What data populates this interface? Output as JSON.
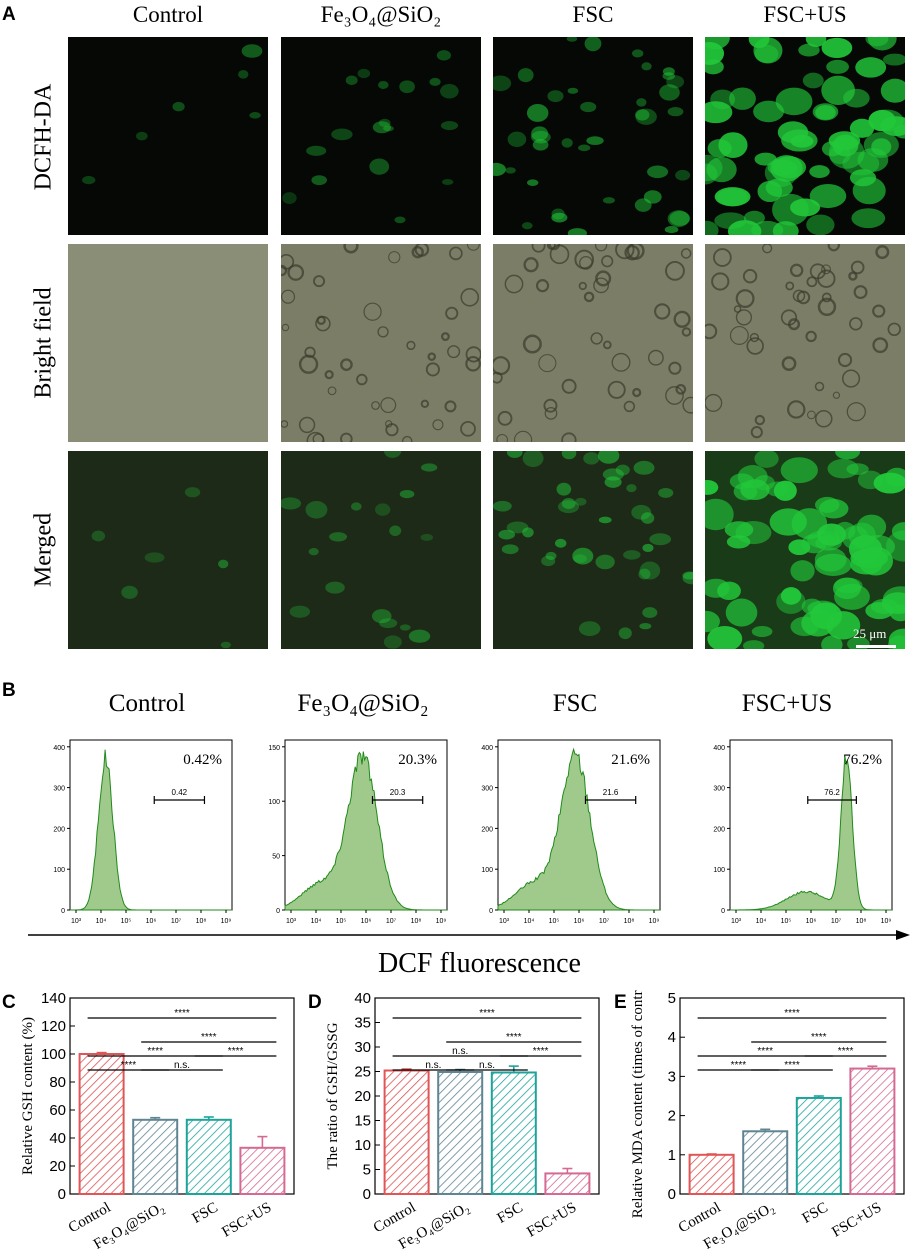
{
  "panels": {
    "a": "A",
    "b": "B",
    "c": "C",
    "d": "D",
    "e": "E"
  },
  "microscopy": {
    "columns": [
      "Control",
      "Fe₃O₄@SiO₂",
      "FSC",
      "FSC+US"
    ],
    "rows": [
      "DCFH-DA",
      "Bright field",
      "Merged"
    ],
    "scale_bar": "25 μm",
    "colors": {
      "fluor": "#22c83a",
      "bright": "#7e8370"
    }
  },
  "flow": {
    "titles": [
      "Control",
      "Fe₃O₄@SiO₂",
      "FSC",
      "FSC+US"
    ],
    "percents": [
      "0.42%",
      "20.3%",
      "21.6%",
      "76.2%"
    ],
    "gate_labels": [
      "0.42",
      "20.3",
      "21.6",
      "76.2"
    ],
    "x_ticks": [
      "10³",
      "10⁴",
      "10⁵",
      "10⁶",
      "10⁷",
      "10⁸",
      "10⁹"
    ],
    "y_ticks": [
      [
        "0",
        "100",
        "200",
        "300",
        "400"
      ],
      [
        "0",
        "50",
        "100",
        "150"
      ],
      [
        "0",
        "100",
        "200",
        "300",
        "400"
      ],
      [
        "0",
        "100",
        "200",
        "300",
        "400"
      ]
    ],
    "axis_label": "DCF fluorescence",
    "colors": {
      "fill": "#9fca8c",
      "line": "#1f8a1a"
    }
  },
  "chart_data": [
    {
      "type": "bar",
      "ylabel": "Relative GSH content (%)",
      "categories": [
        "Control",
        "Fe₃O₄@SiO₂",
        "FSC",
        "FSC+US"
      ],
      "values": [
        100,
        53,
        53,
        33
      ],
      "errors": [
        1,
        1.5,
        2,
        8
      ],
      "ylim": [
        0,
        140
      ],
      "yticks": [
        "0",
        "20",
        "40",
        "60",
        "80",
        "100",
        "120",
        "140"
      ],
      "significance": [
        {
          "from": 0,
          "to": 1,
          "label": "****",
          "level": 1
        },
        {
          "from": 0,
          "to": 2,
          "label": "****",
          "level": 2
        },
        {
          "from": 0,
          "to": 3,
          "label": "****",
          "level": 4
        },
        {
          "from": 1,
          "to": 2,
          "label": "n.s.",
          "level": 1
        },
        {
          "from": 1,
          "to": 3,
          "label": "****",
          "level": 3
        },
        {
          "from": 2,
          "to": 3,
          "label": "****",
          "level": 2
        }
      ]
    },
    {
      "type": "bar",
      "ylabel": "The ratio of GSH/GSSG",
      "categories": [
        "Control",
        "Fe₃O₄@SiO₂",
        "FSC",
        "FSC+US"
      ],
      "values": [
        25.2,
        24.9,
        24.8,
        4.2
      ],
      "errors": [
        0.3,
        0.5,
        1.3,
        1.0
      ],
      "ylim": [
        0,
        40
      ],
      "yticks": [
        "0",
        "5",
        "10",
        "15",
        "20",
        "25",
        "30",
        "35",
        "40"
      ],
      "significance": [
        {
          "from": 0,
          "to": 1,
          "label": "n.s.",
          "level": 1
        },
        {
          "from": 0,
          "to": 2,
          "label": "n.s.",
          "level": 2
        },
        {
          "from": 0,
          "to": 3,
          "label": "****",
          "level": 4
        },
        {
          "from": 1,
          "to": 2,
          "label": "n.s.",
          "level": 1
        },
        {
          "from": 1,
          "to": 3,
          "label": "****",
          "level": 3
        },
        {
          "from": 2,
          "to": 3,
          "label": "****",
          "level": 2
        }
      ]
    },
    {
      "type": "bar",
      "ylabel": "Relative MDA content (times of control)",
      "categories": [
        "Control",
        "Fe₃O₄@SiO₂",
        "FSC",
        "FSC+US"
      ],
      "values": [
        1.0,
        1.6,
        2.45,
        3.2
      ],
      "errors": [
        0.02,
        0.05,
        0.05,
        0.06
      ],
      "ylim": [
        0,
        5
      ],
      "yticks": [
        "0",
        "1",
        "2",
        "3",
        "4",
        "5"
      ],
      "significance": [
        {
          "from": 0,
          "to": 1,
          "label": "****",
          "level": 1
        },
        {
          "from": 0,
          "to": 2,
          "label": "****",
          "level": 2
        },
        {
          "from": 0,
          "to": 3,
          "label": "****",
          "level": 4
        },
        {
          "from": 1,
          "to": 2,
          "label": "****",
          "level": 1
        },
        {
          "from": 1,
          "to": 3,
          "label": "****",
          "level": 3
        },
        {
          "from": 2,
          "to": 3,
          "label": "****",
          "level": 2
        }
      ]
    }
  ],
  "bar_colors": [
    "#e05555",
    "#5f8592",
    "#1ea39b",
    "#d46a93"
  ]
}
